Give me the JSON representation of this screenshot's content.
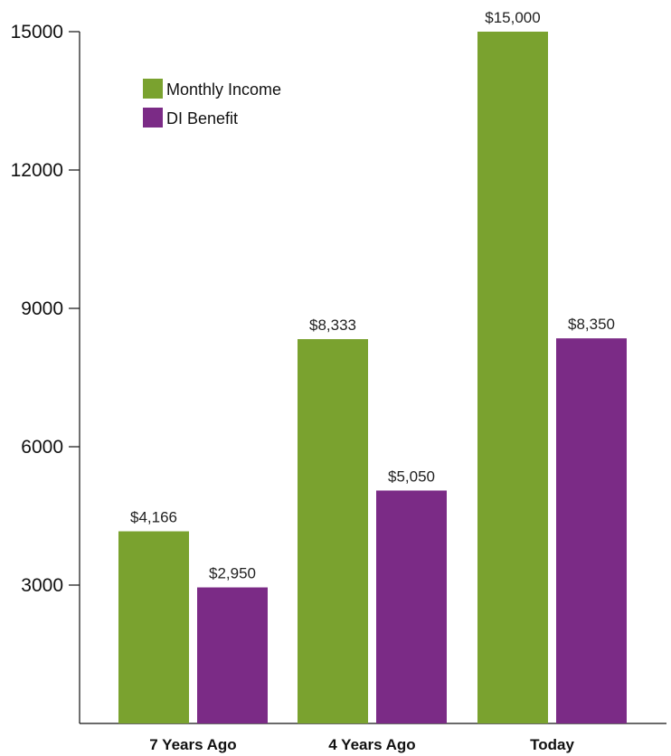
{
  "chart_data": {
    "type": "bar",
    "title": "",
    "xlabel": "",
    "ylabel": "",
    "categories": [
      "7 Years Ago",
      "4 Years Ago",
      "Today"
    ],
    "series": [
      {
        "name": "Monthly Income",
        "color": "#7aa22f",
        "values": [
          4166,
          8333,
          15000
        ],
        "labels": [
          "$4,166",
          "$8,333",
          "$15,000"
        ]
      },
      {
        "name": "DI Benefit",
        "color": "#7b2b86",
        "values": [
          2950,
          5050,
          8350
        ],
        "labels": [
          "$2,950",
          "$5,050",
          "$8,350"
        ]
      }
    ],
    "ylim": [
      0,
      15000
    ],
    "yticks": [
      3000,
      6000,
      9000,
      12000,
      15000
    ],
    "ytick_labels": [
      "3000",
      "6000",
      "9000",
      "12000",
      "15000"
    ],
    "grid": false,
    "legend_position": "top-left"
  }
}
